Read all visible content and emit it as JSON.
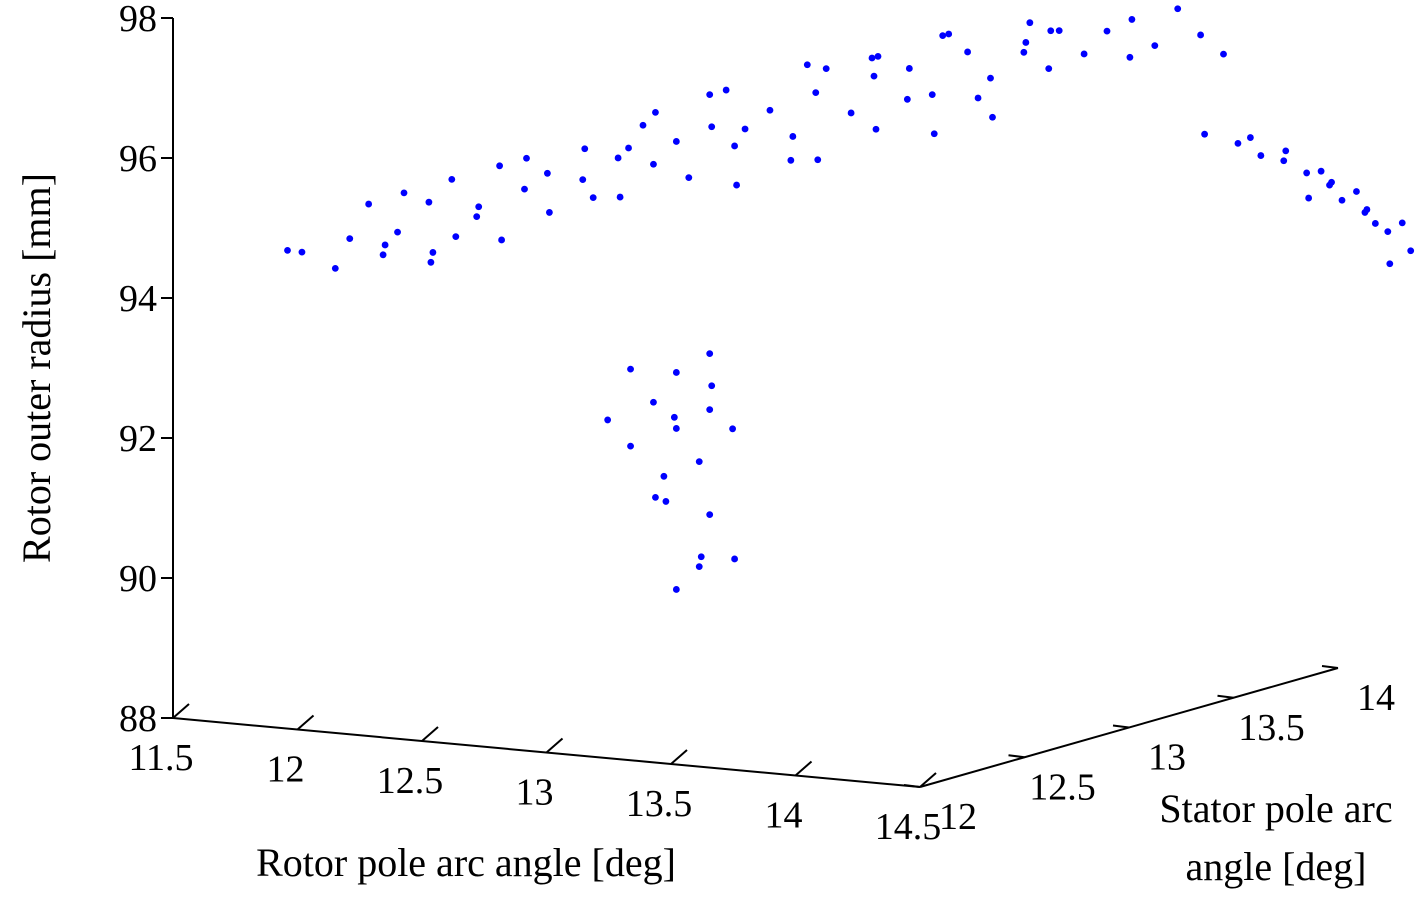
{
  "chart_data": {
    "type": "scatter",
    "projection": "3d",
    "xlabel": "Rotor pole arc angle [deg]",
    "ylabel_lines": [
      "Stator pole arc",
      "angle [deg]"
    ],
    "zlabel": "Rotor outer radius [mm]",
    "xlim": [
      11.5,
      14.5
    ],
    "ylim": [
      12,
      14
    ],
    "zlim": [
      88,
      98
    ],
    "x_ticks": [
      "11.5",
      "12",
      "12.5",
      "13",
      "13.5",
      "14",
      "14.5"
    ],
    "y_ticks": [
      "12",
      "12.5",
      "13",
      "13.5",
      "14"
    ],
    "z_ticks": [
      "88",
      "90",
      "92",
      "94",
      "96",
      "98"
    ],
    "grid": false,
    "legend": "none",
    "marker_color": "#0000ff",
    "clusters": [
      {
        "description": "main cloud",
        "points": [
          [
            11.75,
            12.25,
            94.55
          ],
          [
            11.85,
            12.2,
            94.6
          ],
          [
            11.9,
            12.3,
            94.3
          ],
          [
            12.0,
            12.25,
            94.8
          ],
          [
            12.05,
            12.35,
            94.5
          ],
          [
            12.1,
            12.3,
            94.7
          ],
          [
            12.2,
            12.4,
            94.4
          ],
          [
            12.15,
            12.3,
            94.9
          ],
          [
            12.25,
            12.35,
            94.6
          ],
          [
            12.3,
            12.4,
            94.8
          ],
          [
            11.95,
            12.4,
            95.15
          ],
          [
            12.05,
            12.45,
            95.3
          ],
          [
            12.15,
            12.45,
            95.2
          ],
          [
            12.3,
            12.5,
            95.0
          ],
          [
            12.35,
            12.45,
            95.2
          ],
          [
            12.4,
            12.5,
            94.7
          ],
          [
            12.45,
            12.55,
            95.4
          ],
          [
            12.5,
            12.6,
            95.6
          ],
          [
            12.55,
            12.55,
            95.1
          ],
          [
            12.6,
            12.65,
            95.5
          ],
          [
            12.7,
            12.7,
            95.8
          ],
          [
            12.75,
            12.65,
            95.3
          ],
          [
            12.8,
            12.75,
            95.7
          ],
          [
            12.85,
            12.8,
            96.0
          ],
          [
            12.9,
            12.8,
            95.5
          ],
          [
            12.95,
            12.85,
            96.2
          ],
          [
            13.0,
            12.9,
            95.9
          ],
          [
            13.05,
            12.85,
            95.4
          ],
          [
            13.1,
            12.95,
            96.4
          ],
          [
            13.15,
            13.0,
            96.0
          ],
          [
            13.2,
            13.05,
            96.6
          ],
          [
            13.25,
            13.0,
            95.7
          ],
          [
            13.3,
            13.1,
            96.3
          ],
          [
            13.35,
            13.15,
            96.8
          ],
          [
            13.4,
            13.1,
            96.1
          ],
          [
            13.45,
            13.2,
            96.9
          ],
          [
            13.5,
            13.25,
            96.5
          ],
          [
            13.55,
            13.2,
            96.0
          ],
          [
            13.6,
            13.3,
            97.1
          ],
          [
            13.65,
            13.35,
            96.7
          ],
          [
            13.7,
            13.3,
            96.2
          ],
          [
            13.75,
            13.4,
            97.2
          ],
          [
            13.8,
            13.45,
            96.8
          ],
          [
            13.85,
            13.4,
            97.4
          ],
          [
            13.9,
            13.5,
            97.0
          ],
          [
            13.95,
            13.55,
            97.3
          ],
          [
            14.0,
            13.6,
            96.9
          ],
          [
            14.05,
            13.55,
            97.5
          ],
          [
            14.1,
            13.6,
            97.1
          ],
          [
            14.15,
            13.65,
            97.6
          ],
          [
            14.2,
            13.7,
            97.2
          ],
          [
            14.25,
            13.75,
            96.9
          ],
          [
            12.6,
            12.7,
            95.2
          ],
          [
            12.7,
            12.75,
            95.9
          ],
          [
            12.8,
            12.7,
            96.3
          ],
          [
            12.9,
            12.9,
            96.6
          ],
          [
            13.0,
            12.95,
            96.1
          ],
          [
            13.1,
            13.05,
            95.6
          ],
          [
            13.2,
            13.1,
            96.9
          ],
          [
            13.3,
            13.2,
            97.0
          ],
          [
            13.4,
            13.25,
            96.4
          ],
          [
            13.5,
            13.3,
            97.3
          ],
          [
            13.6,
            13.35,
            96.4
          ],
          [
            13.7,
            13.45,
            97.0
          ],
          [
            13.8,
            13.5,
            97.3
          ],
          [
            12.2,
            12.5,
            95.5
          ],
          [
            12.35,
            12.55,
            95.7
          ],
          [
            12.5,
            12.5,
            95.9
          ],
          [
            12.65,
            12.6,
            96.0
          ],
          [
            12.85,
            12.7,
            96.5
          ],
          [
            13.05,
            12.8,
            96.8
          ],
          [
            13.25,
            12.95,
            97.1
          ],
          [
            13.45,
            13.05,
            97.2
          ],
          [
            13.65,
            13.15,
            97.5
          ],
          [
            13.85,
            13.3,
            97.6
          ]
        ]
      },
      {
        "description": "lower column",
        "points": [
          [
            12.85,
            12.8,
            89.6
          ],
          [
            12.9,
            12.85,
            89.9
          ],
          [
            12.95,
            12.8,
            90.1
          ],
          [
            12.9,
            12.9,
            90.6
          ],
          [
            12.85,
            12.75,
            90.9
          ],
          [
            12.8,
            12.8,
            91.2
          ],
          [
            12.9,
            12.85,
            91.4
          ],
          [
            12.75,
            12.7,
            91.7
          ],
          [
            12.85,
            12.8,
            91.9
          ],
          [
            12.9,
            12.9,
            92.1
          ],
          [
            12.8,
            12.75,
            92.3
          ],
          [
            12.95,
            12.85,
            92.5
          ],
          [
            12.85,
            12.8,
            92.7
          ],
          [
            12.9,
            12.9,
            92.9
          ],
          [
            12.75,
            12.7,
            92.8
          ],
          [
            13.0,
            12.9,
            90.0
          ],
          [
            12.7,
            12.65,
            92.1
          ],
          [
            12.8,
            12.85,
            92.0
          ],
          [
            12.95,
            12.95,
            91.8
          ],
          [
            12.85,
            12.7,
            91.0
          ]
        ]
      },
      {
        "description": "right cloud",
        "points": [
          [
            14.3,
            13.6,
            95.9
          ],
          [
            14.35,
            13.7,
            95.7
          ],
          [
            14.4,
            13.75,
            95.5
          ],
          [
            14.45,
            13.8,
            95.4
          ],
          [
            14.5,
            13.85,
            95.2
          ],
          [
            14.55,
            13.9,
            95.0
          ],
          [
            14.6,
            13.9,
            94.8
          ],
          [
            14.65,
            13.95,
            94.6
          ],
          [
            14.7,
            14.0,
            94.3
          ],
          [
            14.75,
            14.05,
            94.0
          ],
          [
            14.8,
            14.1,
            93.8
          ],
          [
            14.85,
            14.15,
            93.6
          ],
          [
            14.6,
            13.85,
            95.1
          ],
          [
            14.55,
            13.8,
            94.9
          ],
          [
            14.7,
            13.9,
            94.7
          ],
          [
            14.65,
            14.0,
            94.4
          ],
          [
            14.8,
            14.05,
            94.2
          ],
          [
            14.75,
            13.95,
            93.9
          ],
          [
            14.9,
            14.2,
            93.5
          ],
          [
            15.0,
            14.3,
            93.3
          ],
          [
            14.4,
            13.7,
            95.8
          ],
          [
            14.5,
            13.75,
            95.6
          ],
          [
            14.6,
            13.8,
            95.3
          ],
          [
            14.7,
            13.85,
            95.0
          ],
          [
            14.8,
            13.95,
            94.5
          ]
        ]
      }
    ]
  }
}
